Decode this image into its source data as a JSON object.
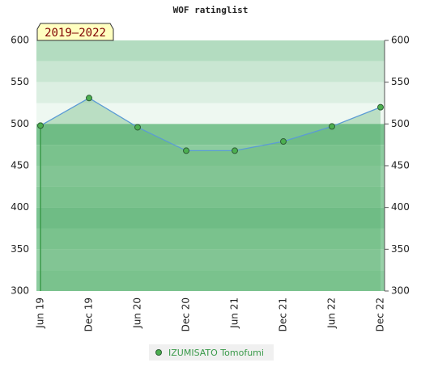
{
  "chart_data": {
    "type": "line",
    "title": "WOF ratinglist",
    "annotation": "2019–2022",
    "categories": [
      "Jun 19",
      "Dec 19",
      "Jun 20",
      "Dec 20",
      "Jun 21",
      "Dec 21",
      "Jun 22",
      "Dec 22"
    ],
    "series": [
      {
        "name": "IZUMISATO Tomofumi",
        "color": "#5b9bd5",
        "marker_color": "#4caf50",
        "values": [
          498,
          531,
          496,
          468,
          468,
          479,
          497,
          520
        ]
      }
    ],
    "ylim": [
      300,
      600
    ],
    "yticks": [
      300,
      350,
      400,
      450,
      500,
      550,
      600
    ],
    "y2lim": [
      300,
      600
    ],
    "y2ticks": [
      300,
      350,
      400,
      450,
      500,
      550,
      600
    ]
  }
}
